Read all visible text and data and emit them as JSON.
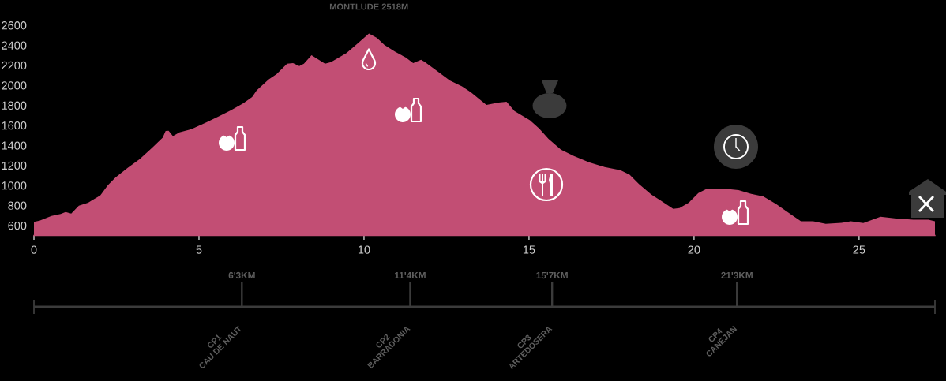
{
  "chart_data": {
    "type": "area",
    "color": "#c24e74",
    "x": [
      0,
      0.17,
      0.53,
      0.81,
      0.96,
      1.13,
      1.36,
      1.64,
      2.01,
      2.24,
      2.47,
      2.84,
      3.21,
      3.57,
      3.9,
      3.99,
      4.08,
      4.21,
      4.41,
      4.77,
      5.23,
      5.6,
      5.97,
      6.35,
      6.61,
      6.75,
      7.11,
      7.35,
      7.67,
      7.85,
      8.04,
      8.18,
      8.41,
      8.6,
      8.82,
      9.0,
      9.47,
      9.79,
      10.15,
      10.39,
      10.62,
      10.94,
      11.27,
      11.49,
      11.73,
      11.85,
      12.23,
      12.6,
      12.97,
      13.24,
      13.71,
      14.08,
      14.32,
      14.56,
      15.03,
      15.31,
      15.59,
      15.97,
      16.36,
      16.82,
      17.29,
      17.77,
      18.05,
      18.33,
      18.71,
      19.09,
      19.37,
      19.56,
      19.84,
      20.13,
      20.4,
      20.88,
      21.35,
      21.73,
      22.1,
      22.49,
      22.96,
      23.24,
      23.61,
      23.99,
      24.47,
      24.75,
      25.13,
      25.65,
      26.07,
      26.64,
      27.1,
      27.3
    ],
    "values": [
      635,
      647,
      695,
      714,
      734,
      718,
      797,
      828,
      899,
      1002,
      1080,
      1175,
      1265,
      1372,
      1477,
      1545,
      1546,
      1492,
      1531,
      1561,
      1631,
      1689,
      1750,
      1822,
      1883,
      1949,
      2058,
      2111,
      2216,
      2222,
      2192,
      2216,
      2301,
      2261,
      2216,
      2232,
      2322,
      2413,
      2518,
      2474,
      2403,
      2337,
      2277,
      2222,
      2255,
      2232,
      2140,
      2049,
      1989,
      1931,
      1805,
      1828,
      1836,
      1743,
      1650,
      1568,
      1466,
      1356,
      1293,
      1231,
      1184,
      1153,
      1107,
      1014,
      907,
      828,
      765,
      773,
      828,
      923,
      968,
      968,
      954,
      915,
      891,
      813,
      704,
      642,
      642,
      616,
      626,
      642,
      624,
      688,
      672,
      657,
      657,
      642
    ],
    "xlim": [
      0,
      27.3
    ],
    "ylim": [
      500,
      2600
    ],
    "xticks": [
      0,
      5,
      10,
      15,
      20,
      25
    ],
    "yticks": [
      600,
      800,
      1000,
      1200,
      1400,
      1600,
      1800,
      2000,
      2200,
      2400,
      2600
    ],
    "grid": false,
    "ref_lines": [
      {
        "axis": "x",
        "value": 6.3,
        "label": "6'3KM",
        "color": "#3b3b3b"
      },
      {
        "axis": "x",
        "value": 11.4,
        "label": "11'4KM",
        "color": "#3b3b3b"
      },
      {
        "axis": "x",
        "value": 15.7,
        "label": "15'7KM",
        "color": "#3b3b3b"
      },
      {
        "axis": "x",
        "value": 21.3,
        "label": "21'3KM",
        "color": "#3b3b3b"
      }
    ],
    "annotations": [
      {
        "text": "MONTLUDE 2518M",
        "x": 10.15,
        "y": 2518
      },
      "CP1\nCAU DE NAUT",
      "CP2\nBARRADONIA",
      "CP3\nARTEDOSERA",
      "CP4\nCANEJAN"
    ]
  }
}
